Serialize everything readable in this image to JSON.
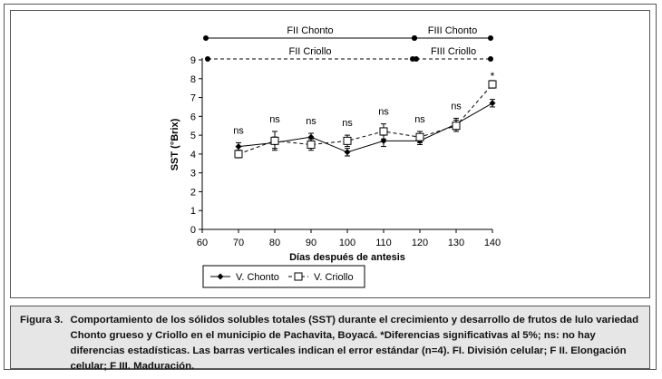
{
  "chart_data": {
    "type": "line",
    "title": "",
    "xlabel": "Días después de antesis",
    "ylabel": "SST (°Brix)",
    "xlim": [
      60,
      140
    ],
    "ylim": [
      0,
      9
    ],
    "x_ticks": [
      60,
      70,
      80,
      90,
      100,
      110,
      120,
      130,
      140
    ],
    "y_ticks": [
      0,
      1,
      2,
      3,
      4,
      5,
      6,
      7,
      8,
      9
    ],
    "grid": false,
    "legend_position": "bottom-left",
    "x": [
      70,
      80,
      90,
      100,
      110,
      120,
      130,
      140
    ],
    "series": [
      {
        "name": "V. Chonto",
        "values": [
          4.4,
          4.6,
          4.9,
          4.1,
          4.7,
          4.7,
          5.6,
          6.7
        ],
        "errors": [
          0.2,
          0.3,
          0.2,
          0.2,
          0.3,
          0.2,
          0.3,
          0.2
        ],
        "marker": "diamond-filled",
        "line": "solid"
      },
      {
        "name": "V. Criollo",
        "values": [
          4.0,
          4.7,
          4.5,
          4.7,
          5.2,
          4.9,
          5.5,
          7.7
        ],
        "errors": [
          0.2,
          0.5,
          0.3,
          0.3,
          0.4,
          0.3,
          0.3,
          0.2
        ],
        "marker": "square-open",
        "line": "dashed"
      }
    ],
    "annotations": [
      "ns",
      "ns",
      "ns",
      "ns",
      "ns",
      "ns",
      "ns",
      "*"
    ],
    "phases": [
      {
        "label": "FII Chonto",
        "start": 61,
        "end": 118.5,
        "row": "top",
        "line": "solid"
      },
      {
        "label": "FIII Chonto",
        "start": 118.5,
        "end": 139.5,
        "row": "top",
        "line": "solid"
      },
      {
        "label": "FII Criollo",
        "start": 61.5,
        "end": 118,
        "row": "bottom",
        "line": "dashed"
      },
      {
        "label": "FIII Criollo",
        "start": 119,
        "end": 139.5,
        "row": "bottom",
        "line": "dashed"
      }
    ]
  },
  "caption": {
    "label": "Figura 3.",
    "text": "Comportamiento de los sólidos solubles totales (SST) durante el crecimiento y desarrollo de frutos de lulo variedad Chonto grueso y Criollo en el municipio de Pachavita, Boyacá. *Diferencias significativas al 5%; ns: no hay diferencias estadísticas. Las barras verticales indican el error estándar (n=4). FI. División celular; F II. Elongación celular; F III. Maduración."
  }
}
